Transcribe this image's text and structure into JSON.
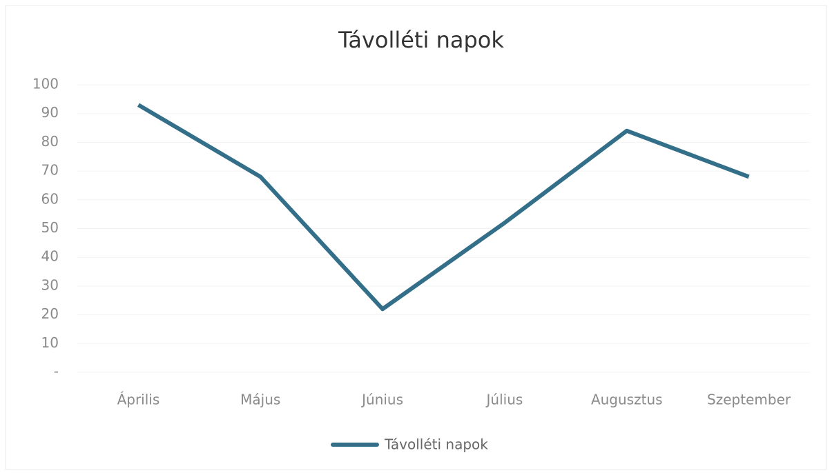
{
  "chart_data": {
    "type": "line",
    "title": "Távolléti napok",
    "categories": [
      "Április",
      "Május",
      "Június",
      "Július",
      "Augusztus",
      "Szeptember"
    ],
    "series": [
      {
        "name": "Távolléti napok",
        "color": "#336f89",
        "values": [
          93,
          68,
          22,
          52,
          84,
          68
        ]
      }
    ],
    "ylim": [
      0,
      100
    ],
    "yticks": [
      {
        "value": 0,
        "label": "-"
      },
      10,
      20,
      30,
      40,
      50,
      60,
      70,
      80,
      90,
      100
    ],
    "grid": true,
    "legend": "bottom"
  }
}
